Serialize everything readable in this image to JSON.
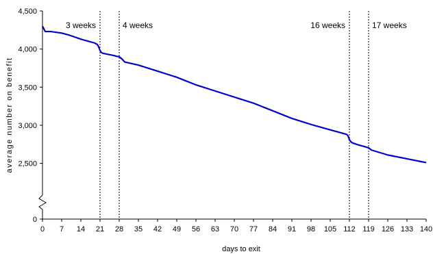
{
  "chart_data": {
    "type": "line",
    "xlabel": "days to exit",
    "ylabel": "average number on benefit",
    "xlim": [
      0,
      140
    ],
    "ylim_display": [
      2200,
      4500
    ],
    "y_axis_break": true,
    "x_ticks": [
      0,
      7,
      14,
      21,
      28,
      35,
      42,
      49,
      56,
      63,
      70,
      77,
      84,
      91,
      98,
      105,
      112,
      119,
      126,
      133,
      140
    ],
    "y_ticks": [
      {
        "value": 0,
        "label": "0"
      },
      {
        "value": 2500,
        "label": "2,500"
      },
      {
        "value": 3000,
        "label": "3,000"
      },
      {
        "value": 3500,
        "label": "3,500"
      },
      {
        "value": 4000,
        "label": "4,000"
      },
      {
        "value": 4500,
        "label": "4,500"
      }
    ],
    "reference_lines": [
      {
        "x": 21,
        "label": "3 weeks",
        "label_side": "left"
      },
      {
        "x": 28,
        "label": "4 weeks",
        "label_side": "right"
      },
      {
        "x": 112,
        "label": "16 weeks",
        "label_side": "left"
      },
      {
        "x": 119,
        "label": "17 weeks",
        "label_side": "right"
      }
    ],
    "series": [
      {
        "color": "#0000cc",
        "x": [
          0,
          1,
          3,
          7,
          10,
          14,
          17,
          19,
          20,
          20.5,
          21,
          21.5,
          22,
          24,
          26,
          27,
          28,
          29,
          30,
          35,
          42,
          49,
          56,
          63,
          70,
          77,
          84,
          91,
          98,
          105,
          108,
          110,
          111,
          111.5,
          112,
          112.5,
          113,
          115,
          117,
          118,
          119,
          120,
          126,
          133,
          140
        ],
        "y": [
          4300,
          4230,
          4230,
          4210,
          4180,
          4130,
          4100,
          4080,
          4060,
          4030,
          3980,
          3955,
          3945,
          3930,
          3915,
          3905,
          3900,
          3870,
          3830,
          3790,
          3710,
          3630,
          3530,
          3450,
          3370,
          3290,
          3190,
          3090,
          3010,
          2940,
          2910,
          2890,
          2880,
          2860,
          2810,
          2785,
          2770,
          2745,
          2725,
          2715,
          2705,
          2675,
          2610,
          2560,
          2510
        ]
      }
    ]
  }
}
